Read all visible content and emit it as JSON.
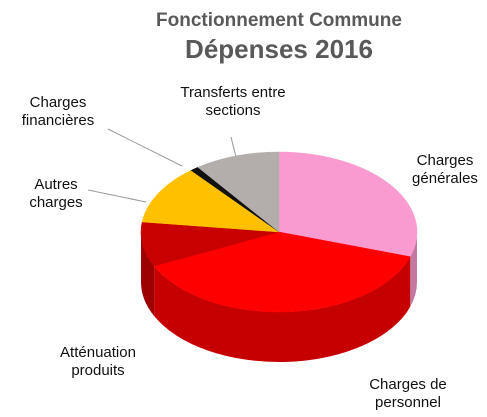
{
  "chart_data": {
    "type": "pie3d",
    "title": "Fonctionnement Commune",
    "subtitle": "Dépenses 2016",
    "categories": [
      "Charges\ngénérales",
      "Charges de\npersonnel",
      "Atténuation\nproduits",
      "Autres\ncharges",
      "Charges\nfinancières",
      "Transferts entre\nsections"
    ],
    "values": [
      30,
      38,
      9,
      12,
      1,
      10
    ],
    "colors": [
      "#f99bd0",
      "#ff0000",
      "#c80000",
      "#ffc000",
      "#111111",
      "#b3adab"
    ]
  }
}
